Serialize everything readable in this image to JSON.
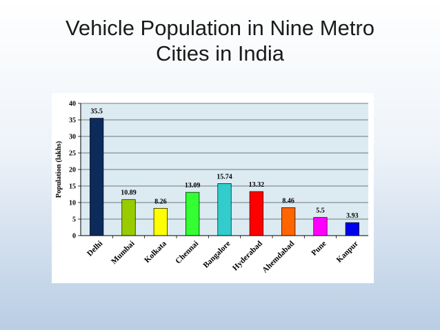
{
  "slide": {
    "title_line1": "Vehicle Population in Nine Metro",
    "title_line2": "Cities in India"
  },
  "chart_data": {
    "type": "bar",
    "title": "",
    "xlabel": "",
    "ylabel": "Population (lakhs)",
    "ylim": [
      0,
      40
    ],
    "yticks": [
      0,
      5,
      10,
      15,
      20,
      25,
      30,
      35,
      40
    ],
    "grid": true,
    "legend": "none",
    "categories": [
      "Delhi",
      "Mumbai",
      "Kolkata",
      "Chennai",
      "Bangalore",
      "Hyderabad",
      "Ahemdabad",
      "Pune",
      "Kanpur"
    ],
    "values": [
      35.5,
      10.89,
      8.26,
      13.09,
      15.74,
      13.32,
      8.46,
      5.5,
      3.93
    ],
    "data_labels": [
      "35.5",
      "10.89",
      "8.26",
      "13.09",
      "15.74",
      "13.32",
      "8.46",
      "5.5",
      "3.93"
    ],
    "bar_colors": [
      "#0d2a5c",
      "#99cc00",
      "#ffff00",
      "#33ff33",
      "#33cccc",
      "#ff0000",
      "#ff6600",
      "#ff00ff",
      "#0000ee"
    ],
    "plot_background": "#dceaf2"
  }
}
